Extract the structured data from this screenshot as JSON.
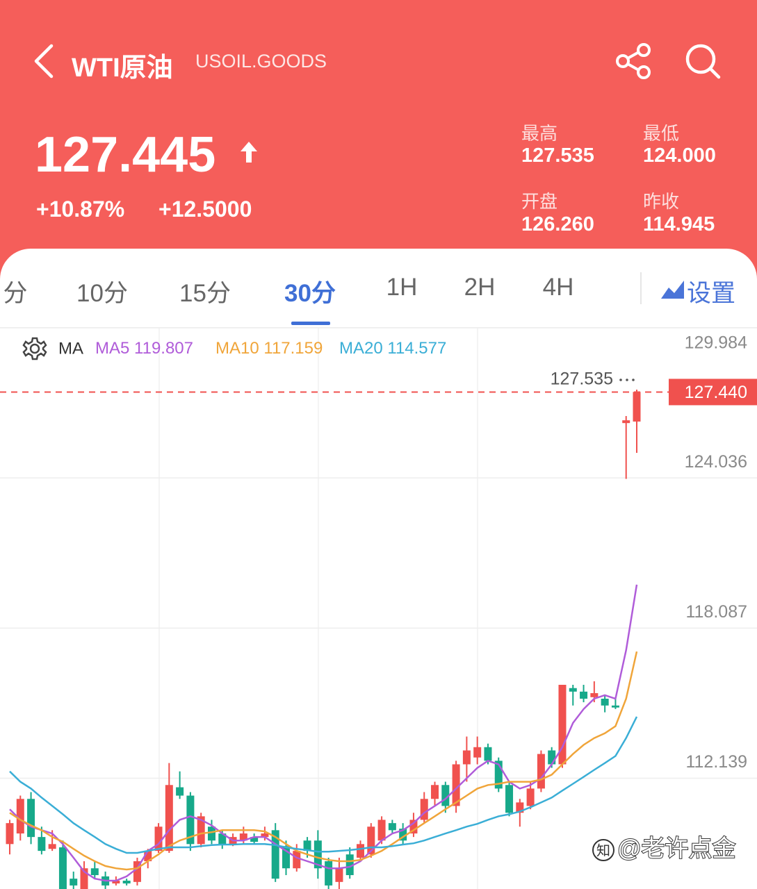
{
  "header": {
    "title": "WTI原油",
    "symbol": "USOIL.GOODS",
    "price": "127.445",
    "change_pct": "+10.87%",
    "change": "+12.5000",
    "stats": [
      {
        "label": "最高",
        "value": "127.535"
      },
      {
        "label": "最低",
        "value": "124.000"
      },
      {
        "label": "开盘",
        "value": "126.260"
      },
      {
        "label": "昨收",
        "value": "114.945"
      }
    ]
  },
  "tabs": {
    "items": [
      "分",
      "10分",
      "15分",
      "30分",
      "1H",
      "2H",
      "4H"
    ],
    "active": 3,
    "settings": "设置"
  },
  "watermark": "@老许点金",
  "chart_data": {
    "type": "candlestick",
    "indicator": "MA",
    "up_color": "#f0514e",
    "down_color": "#17a98a",
    "grid": true,
    "ylim": [
      107.75,
      129.984
    ],
    "yticks": [
      129.984,
      124.036,
      118.087,
      112.139
    ],
    "last_price": {
      "value": 127.44,
      "label": "127.440"
    },
    "open": [
      109.53,
      109.95,
      111.32,
      109.81,
      109.34,
      109.4,
      108.16,
      107.75,
      108.57,
      108.25,
      107.97,
      108.08,
      108.03,
      108.85,
      109.26,
      109.26,
      111.78,
      111.45,
      109.53,
      110.22,
      109.95,
      109.53,
      109.67,
      109.81,
      109.81,
      110.08,
      109.45,
      108.57,
      109.67,
      109.67,
      108.85,
      108.03,
      109.12,
      108.99,
      109.12,
      109.67,
      110.36,
      110.14,
      109.95,
      110.49,
      111.32,
      111.87,
      111.04,
      112.69,
      112.96,
      113.37,
      112.83,
      111.87,
      110.77,
      111.04,
      111.73,
      113.24,
      112.69,
      115.71,
      115.57,
      115.35,
      115.29,
      115.02,
      126.21,
      126.27
    ],
    "high": [
      110.49,
      111.45,
      111.59,
      110.22,
      110.08,
      109.67,
      108.44,
      108.85,
      108.85,
      108.44,
      108.25,
      108.16,
      108.99,
      109.34,
      110.36,
      112.74,
      112.41,
      111.59,
      110.77,
      110.49,
      110.08,
      109.95,
      110.22,
      109.95,
      110.22,
      110.36,
      109.67,
      109.53,
      109.81,
      110.08,
      108.99,
      108.99,
      109.4,
      109.67,
      110.36,
      110.63,
      110.49,
      110.36,
      110.77,
      111.59,
      112.0,
      112.0,
      112.83,
      113.79,
      113.79,
      113.51,
      112.96,
      112.0,
      111.32,
      112.0,
      113.24,
      113.37,
      115.84,
      115.84,
      115.84,
      115.98,
      115.43,
      115.29,
      126.49,
      127.535
    ],
    "low": [
      109.12,
      109.67,
      109.53,
      109.12,
      109.26,
      107.75,
      107.75,
      107.75,
      108.16,
      107.75,
      107.89,
      107.89,
      107.89,
      108.57,
      109.18,
      109.18,
      111.32,
      109.26,
      109.4,
      109.53,
      109.34,
      109.45,
      109.53,
      109.53,
      109.67,
      108.03,
      108.3,
      108.44,
      108.99,
      108.16,
      107.75,
      107.75,
      108.16,
      108.85,
      108.99,
      109.53,
      109.95,
      109.53,
      109.81,
      110.36,
      111.04,
      110.77,
      110.77,
      112.0,
      112.69,
      112.69,
      111.59,
      110.63,
      110.22,
      110.91,
      111.59,
      112.55,
      112.55,
      115.02,
      115.15,
      115.15,
      114.75,
      114.88,
      124.0,
      125.03
    ],
    "close": [
      110.36,
      111.32,
      109.81,
      109.26,
      109.53,
      107.75,
      107.89,
      108.57,
      108.3,
      107.89,
      108.08,
      107.97,
      108.85,
      109.26,
      110.22,
      111.87,
      111.45,
      109.53,
      110.63,
      109.67,
      109.53,
      109.81,
      109.95,
      109.62,
      109.95,
      108.16,
      108.57,
      109.26,
      109.26,
      108.57,
      107.89,
      108.57,
      108.3,
      109.53,
      110.22,
      110.49,
      110.08,
      109.67,
      110.49,
      111.32,
      111.87,
      111.04,
      112.69,
      113.24,
      113.37,
      112.83,
      111.73,
      110.77,
      111.18,
      111.73,
      113.1,
      112.69,
      115.84,
      115.57,
      115.29,
      115.51,
      115.02,
      114.94,
      126.32,
      127.445
    ],
    "series": [
      {
        "name": "MA5",
        "color": "#b05cd9",
        "values": [
          110.91,
          110.49,
          110.22,
          110.08,
          109.95,
          109.53,
          108.99,
          108.44,
          108.16,
          108.08,
          108.08,
          108.25,
          108.57,
          109.26,
          109.53,
          110.08,
          110.49,
          110.63,
          110.49,
          110.27,
          109.95,
          109.67,
          109.67,
          109.81,
          109.81,
          109.53,
          109.26,
          108.99,
          108.85,
          108.71,
          108.57,
          108.57,
          108.63,
          108.85,
          109.26,
          109.67,
          109.95,
          110.08,
          110.36,
          110.77,
          111.04,
          111.32,
          111.73,
          112.14,
          112.55,
          112.83,
          112.69,
          112.0,
          111.73,
          111.87,
          112.14,
          112.69,
          113.37,
          114.33,
          114.88,
          115.29,
          115.43,
          115.29,
          117.21,
          119.807
        ]
      },
      {
        "name": "MA10",
        "color": "#f0a53a",
        "values": [
          110.77,
          110.49,
          110.27,
          110.08,
          109.81,
          109.62,
          109.34,
          109.07,
          108.85,
          108.66,
          108.57,
          108.52,
          108.57,
          108.85,
          109.12,
          109.45,
          109.67,
          109.81,
          109.95,
          110.0,
          110.08,
          110.08,
          110.08,
          110.08,
          110.03,
          109.81,
          109.53,
          109.26,
          109.12,
          108.99,
          108.9,
          108.85,
          108.85,
          108.9,
          109.07,
          109.26,
          109.53,
          109.81,
          110.08,
          110.36,
          110.63,
          110.91,
          111.18,
          111.45,
          111.73,
          111.87,
          111.92,
          112.0,
          112.0,
          112.0,
          112.09,
          112.28,
          112.69,
          113.1,
          113.46,
          113.73,
          113.92,
          114.2,
          115.29,
          117.159
        ]
      },
      {
        "name": "MA20",
        "color": "#3aaed6",
        "values": [
          112.41,
          112.0,
          111.73,
          111.37,
          111.04,
          110.71,
          110.36,
          110.08,
          109.81,
          109.53,
          109.34,
          109.18,
          109.18,
          109.26,
          109.34,
          109.4,
          109.4,
          109.4,
          109.45,
          109.49,
          109.51,
          109.51,
          109.53,
          109.53,
          109.53,
          109.49,
          109.4,
          109.34,
          109.29,
          109.23,
          109.23,
          109.26,
          109.29,
          109.34,
          109.4,
          109.4,
          109.45,
          109.51,
          109.56,
          109.67,
          109.81,
          109.95,
          110.08,
          110.22,
          110.33,
          110.49,
          110.63,
          110.71,
          110.82,
          110.99,
          111.18,
          111.37,
          111.65,
          111.92,
          112.19,
          112.47,
          112.74,
          113.02,
          113.73,
          114.577
        ]
      }
    ]
  }
}
